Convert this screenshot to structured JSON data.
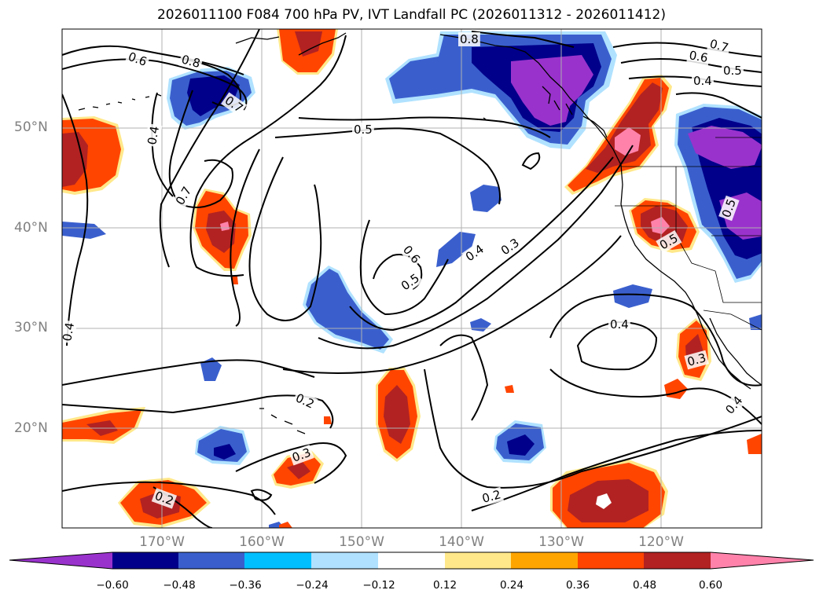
{
  "title": "2026011100 F084 700 hPa PV, IVT Landfall PC (2026011312 - 2026011412)",
  "chart_data": {
    "type": "heatmap",
    "title": "2026011100 F084 700 hPa PV, IVT Landfall PC (2026011312 - 2026011412)",
    "fill_variable": "IVT Landfall PC",
    "contour_variable": "700 hPa PV",
    "lat_ticks": [
      "50°N",
      "40°N",
      "30°N",
      "20°N"
    ],
    "lon_ticks": [
      "170°W",
      "160°W",
      "150°W",
      "140°W",
      "130°W",
      "120°W"
    ],
    "contour_levels": [
      0.2,
      0.3,
      0.4,
      0.5,
      0.6,
      0.7,
      0.8
    ],
    "contour_labels": [
      "0.6",
      "0.8",
      "0.7",
      "0.4",
      "0.7",
      "0.5",
      "0.8",
      "0.7",
      "0.6",
      "0.5",
      "0.4",
      "0.6",
      "0.5",
      "0.4",
      "0.3",
      "0.4",
      "0.4",
      "0.5",
      "0.5",
      "0.2",
      "0.3",
      "0.2",
      "0.2",
      "0.3",
      "0.4"
    ],
    "colorbar": {
      "ticks": [
        "−0.60",
        "−0.48",
        "−0.36",
        "−0.24",
        "−0.12",
        "0.12",
        "0.24",
        "0.36",
        "0.48",
        "0.60"
      ],
      "colors": [
        "#9932cc",
        "#00008b",
        "#3a5fcd",
        "#00bfff",
        "#b0e2ff",
        "#ffffff",
        "#ffe88a",
        "#ffa500",
        "#ff4500",
        "#b22222",
        "#ff82ab"
      ],
      "extend": "both"
    }
  }
}
